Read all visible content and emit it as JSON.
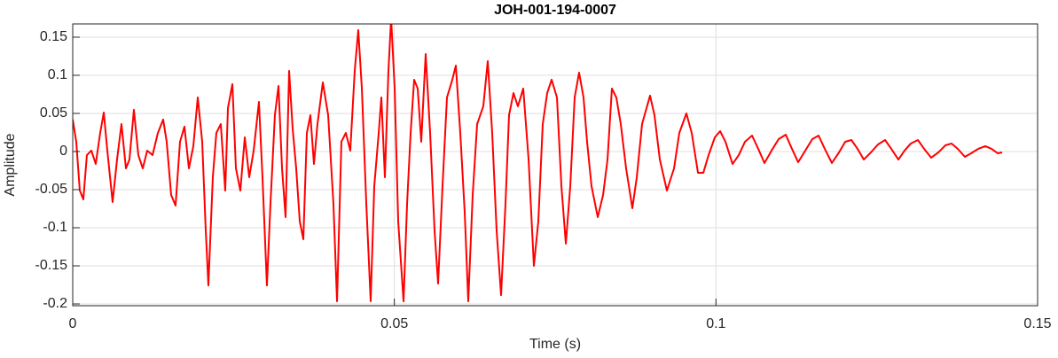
{
  "chart_data": {
    "type": "line",
    "title": "JOH-001-194-0007",
    "x_label": "Time (s)",
    "y_label": "Amplitude",
    "xlim": [
      0,
      0.15
    ],
    "xticks": [
      0,
      0.05,
      0.1,
      0.15
    ],
    "ylim": [
      -0.2023,
      0.1674
    ],
    "yticks": [
      -0.2,
      -0.15,
      -0.1,
      -0.05,
      0,
      0.05,
      0.1,
      0.15
    ],
    "grid": true,
    "x": [
      0,
      0.00055,
      0.0011,
      0.00165,
      0.0022,
      0.0029,
      0.00358,
      0.00427,
      0.00483,
      0.00538,
      0.0062,
      0.00689,
      0.00758,
      0.00827,
      0.00882,
      0.00951,
      0.0102,
      0.01089,
      0.01158,
      0.01241,
      0.01324,
      0.01406,
      0.01461,
      0.0153,
      0.01599,
      0.01668,
      0.01737,
      0.01806,
      0.01875,
      0.01944,
      0.02013,
      0.02068,
      0.02109,
      0.02178,
      0.02233,
      0.02302,
      0.02371,
      0.02413,
      0.02482,
      0.02537,
      0.02606,
      0.02675,
      0.02744,
      0.02813,
      0.02895,
      0.0295,
      0.03019,
      0.03074,
      0.03143,
      0.03199,
      0.03254,
      0.03309,
      0.03364,
      0.03419,
      0.03474,
      0.0353,
      0.03585,
      0.0364,
      0.03695,
      0.0375,
      0.03805,
      0.03888,
      0.03971,
      0.04053,
      0.04109,
      0.04177,
      0.04246,
      0.04315,
      0.04384,
      0.04439,
      0.04495,
      0.04564,
      0.04632,
      0.04688,
      0.04757,
      0.04798,
      0.04853,
      0.04908,
      0.0495,
      0.05005,
      0.0506,
      0.05143,
      0.05198,
      0.05253,
      0.05308,
      0.05363,
      0.05418,
      0.05487,
      0.05556,
      0.05625,
      0.0568,
      0.05749,
      0.05818,
      0.05901,
      0.05956,
      0.06025,
      0.06094,
      0.06149,
      0.06218,
      0.06287,
      0.06383,
      0.06452,
      0.06521,
      0.0659,
      0.06659,
      0.06728,
      0.06783,
      0.06852,
      0.06921,
      0.07004,
      0.07087,
      0.07169,
      0.07238,
      0.07307,
      0.07376,
      0.07445,
      0.07528,
      0.07597,
      0.07666,
      0.07735,
      0.07803,
      0.07872,
      0.07941,
      0.07996,
      0.08065,
      0.08162,
      0.08245,
      0.08314,
      0.08382,
      0.08451,
      0.0852,
      0.08603,
      0.087,
      0.08769,
      0.08851,
      0.08975,
      0.09044,
      0.09127,
      0.09237,
      0.09348,
      0.0943,
      0.0954,
      0.09623,
      0.0972,
      0.09803,
      0.09885,
      0.09982,
      0.10065,
      0.10147,
      0.10258,
      0.10354,
      0.10451,
      0.10561,
      0.10657,
      0.10754,
      0.10864,
      0.10974,
      0.11085,
      0.11181,
      0.11278,
      0.11388,
      0.11498,
      0.11595,
      0.11691,
      0.11802,
      0.11912,
      0.12009,
      0.12105,
      0.12201,
      0.12298,
      0.12408,
      0.12519,
      0.12629,
      0.12725,
      0.12836,
      0.12932,
      0.13029,
      0.13139,
      0.13236,
      0.13346,
      0.13456,
      0.13566,
      0.13663,
      0.13759,
      0.1387,
      0.13966,
      0.14077,
      0.14187,
      0.14283,
      0.1438,
      0.14449
    ],
    "series": [
      {
        "color": "#ff0000",
        "values": [
          0.0419,
          0.0128,
          -0.0512,
          -0.0628,
          -0.0047,
          0.0012,
          -0.0163,
          0.0244,
          0.0512,
          0.0012,
          -0.0663,
          -0.0105,
          0.036,
          -0.0221,
          -0.0105,
          0.0547,
          -0.0047,
          -0.0221,
          0.0012,
          -0.0047,
          0.0244,
          0.0419,
          0.0128,
          -0.057,
          -0.0709,
          0.0128,
          0.0326,
          -0.0221,
          0.007,
          0.0709,
          0.0128,
          -0.1035,
          -0.1756,
          -0.0337,
          0.0244,
          0.036,
          -0.0512,
          0.057,
          0.0884,
          -0.0221,
          -0.0512,
          0.0186,
          -0.0337,
          0.0012,
          0.0651,
          -0.0337,
          -0.1756,
          -0.0686,
          0.0477,
          0.086,
          -0.0221,
          -0.086,
          0.1058,
          0.0302,
          -0.0221,
          -0.0919,
          -0.1151,
          0.0244,
          0.0477,
          -0.0163,
          0.036,
          0.0907,
          0.0477,
          -0.0686,
          -0.1965,
          0.0128,
          0.0244,
          0.0012,
          0.1058,
          0.1593,
          0.0826,
          -0.0686,
          -0.1965,
          -0.0453,
          0.0244,
          0.0709,
          -0.0337,
          0.1058,
          0.175,
          0.0826,
          -0.0919,
          -0.1965,
          -0.0686,
          0.0244,
          0.0942,
          0.0826,
          0.0128,
          0.1279,
          0.0244,
          -0.1035,
          -0.1733,
          -0.0453,
          0.0709,
          0.0942,
          0.1128,
          0.0244,
          -0.0802,
          -0.1965,
          -0.057,
          0.036,
          0.0593,
          0.1186,
          0.0244,
          -0.1035,
          -0.1884,
          -0.0686,
          0.0477,
          0.0767,
          0.0593,
          0.0826,
          -0.0105,
          -0.15,
          -0.0919,
          0.036,
          0.0767,
          0.0942,
          0.0709,
          -0.0453,
          -0.1209,
          -0.0453,
          0.0709,
          0.1035,
          0.0709,
          0.0128,
          -0.0453,
          -0.086,
          -0.057,
          -0.0105,
          0.0826,
          0.0709,
          0.036,
          -0.0221,
          -0.0744,
          -0.0337,
          0.036,
          0.0733,
          0.0477,
          -0.0105,
          -0.0512,
          -0.0221,
          0.0244,
          0.05,
          0.0244,
          -0.0279,
          -0.0279,
          -0.0047,
          0.0186,
          0.0267,
          0.0128,
          -0.0163,
          -0.0047,
          0.0128,
          0.0209,
          0.0035,
          -0.0151,
          0.0012,
          0.0163,
          0.0221,
          0.0035,
          -0.014,
          0.0012,
          0.0163,
          0.0209,
          0.0035,
          -0.0151,
          -0.0012,
          0.0128,
          0.0151,
          0.0035,
          -0.0105,
          -0.0012,
          0.0093,
          0.0151,
          0.0035,
          -0.0105,
          0.0012,
          0.0105,
          0.0151,
          0.0035,
          -0.0081,
          -0.0012,
          0.0081,
          0.0105,
          0.0035,
          -0.007,
          -0.0023,
          0.0035,
          0.007,
          0.0035,
          -0.0023,
          -0.0012
        ]
      }
    ]
  }
}
